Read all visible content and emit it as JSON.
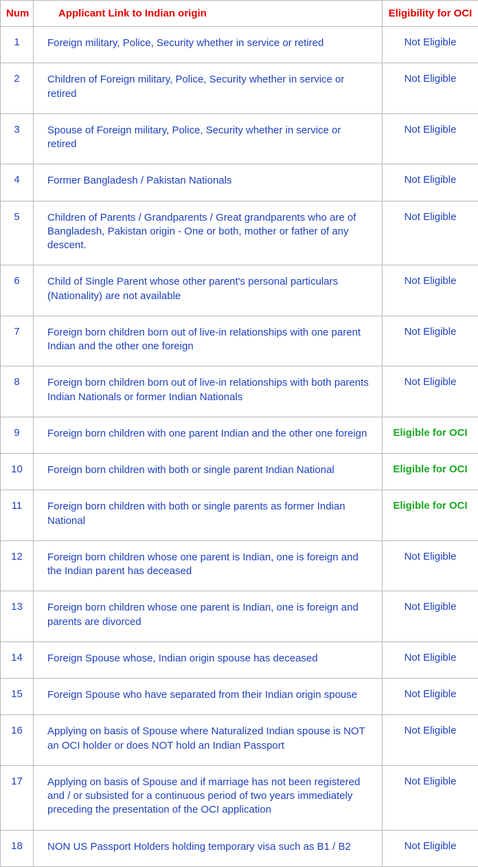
{
  "table": {
    "columns": {
      "num": "Num",
      "desc": "Applicant Link to Indian origin",
      "elig": "Eligibility for OCI"
    },
    "header_color": "#e60000",
    "body_text_color": "#1f3fbf",
    "eligible_color": "#17a820",
    "border_color": "#b8b8b8",
    "rows": [
      {
        "num": "1",
        "desc": "Foreign military, Police, Security whether in service or retired",
        "elig": "Not Eligible",
        "eligible": false
      },
      {
        "num": "2",
        "desc": "Children of Foreign military, Police, Security whether in service or retired",
        "elig": "Not Eligible",
        "eligible": false
      },
      {
        "num": "3",
        "desc": "Spouse of Foreign military, Police, Security whether in service or retired",
        "elig": "Not Eligible",
        "eligible": false
      },
      {
        "num": "4",
        "desc": "Former Bangladesh / Pakistan Nationals",
        "elig": "Not Eligible",
        "eligible": false
      },
      {
        "num": "5",
        "desc": "Children of Parents / Grandparents / Great grandparents who are of Bangladesh, Pakistan origin - One or both, mother or father of any descent.",
        "elig": "Not Eligible",
        "eligible": false
      },
      {
        "num": "6",
        "desc": "Child of Single Parent whose other parent's personal particulars (Nationality) are not available",
        "elig": "Not Eligible",
        "eligible": false
      },
      {
        "num": "7",
        "desc": "Foreign born children born out of live-in relationships with one parent Indian and the other one foreign",
        "elig": "Not Eligible",
        "eligible": false
      },
      {
        "num": "8",
        "desc": "Foreign born children born out of live-in relationships with both parents Indian Nationals or former Indian Nationals",
        "elig": "Not Eligible",
        "eligible": false
      },
      {
        "num": "9",
        "desc": "Foreign born children with one parent Indian and the other one foreign",
        "elig": "Eligible for OCI",
        "eligible": true
      },
      {
        "num": "10",
        "desc": "Foreign born children with both or single parent Indian National",
        "elig": "Eligible for OCI",
        "eligible": true
      },
      {
        "num": "11",
        "desc": "Foreign born children with both or single parents as former Indian National",
        "elig": "Eligible for OCI",
        "eligible": true
      },
      {
        "num": "12",
        "desc": "Foreign born children whose one parent is Indian, one is foreign and the Indian parent has deceased",
        "elig": "Not Eligible",
        "eligible": false
      },
      {
        "num": "13",
        "desc": "Foreign born children whose one parent is Indian, one is foreign and parents are divorced",
        "elig": "Not Eligible",
        "eligible": false
      },
      {
        "num": "14",
        "desc": " Foreign Spouse whose, Indian origin spouse has deceased",
        "elig": "Not Eligible",
        "eligible": false
      },
      {
        "num": "15",
        "desc": "Foreign Spouse who have separated from their Indian origin spouse",
        "elig": "Not Eligible",
        "eligible": false
      },
      {
        "num": "16",
        "desc": "Applying on basis of Spouse where Naturalized Indian spouse is NOT an OCI holder or does NOT hold an Indian Passport",
        "elig": "Not Eligible",
        "eligible": false
      },
      {
        "num": "17",
        "desc": "Applying on basis of Spouse and if marriage has not been registered and / or subsisted for a continuous period of two years immediately preceding the presentation of the OCI application",
        "elig": "Not Eligible",
        "eligible": false
      },
      {
        "num": "18",
        "desc": "NON US Passport Holders holding temporary visa such as B1 / B2",
        "elig": "Not Eligible",
        "eligible": false
      }
    ]
  }
}
